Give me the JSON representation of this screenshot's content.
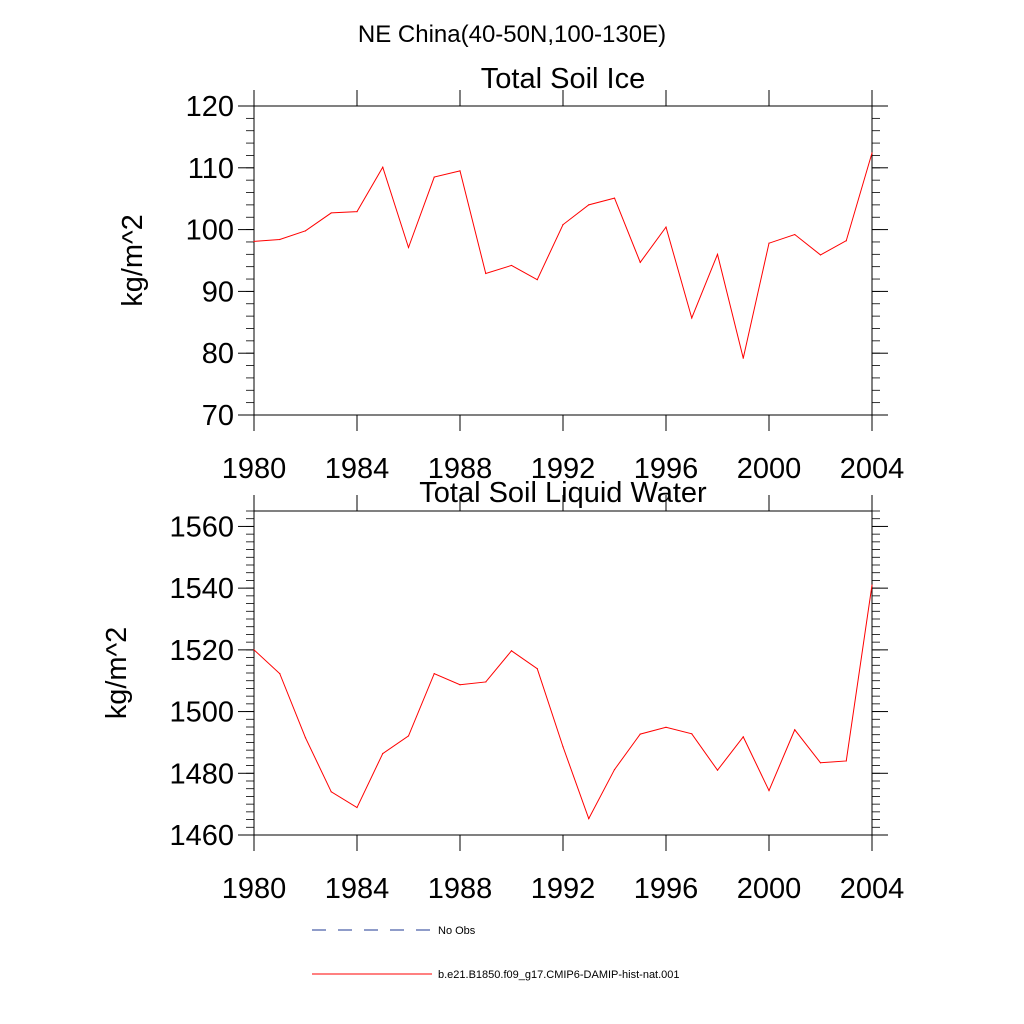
{
  "main_title": "NE China(40-50N,100-130E)",
  "colors": {
    "series": "#ff0000",
    "no_obs": "#1f3a93",
    "axis": "#000000"
  },
  "legend": {
    "no_obs_label": "No Obs",
    "model_label": "b.e21.B1850.f09_g17.CMIP6-DAMIP-hist-nat.001"
  },
  "chart_data": [
    {
      "type": "line",
      "title": "Total Soil Ice",
      "ylabel": "kg/m^2",
      "xlabel": "",
      "xlim": [
        1980,
        2004
      ],
      "ylim": [
        70,
        120
      ],
      "x_ticks": [
        "1980",
        "1984",
        "1988",
        "1992",
        "1996",
        "2000",
        "2004"
      ],
      "y_ticks": [
        "70",
        "80",
        "90",
        "100",
        "110",
        "120"
      ],
      "grid": false,
      "legend_position": "bottom",
      "x": [
        1980,
        1981,
        1982,
        1983,
        1984,
        1985,
        1986,
        1987,
        1988,
        1989,
        1990,
        1991,
        1992,
        1993,
        1994,
        1995,
        1996,
        1997,
        1998,
        1999,
        2000,
        2001,
        2002,
        2003,
        2004
      ],
      "series": [
        {
          "name": "b.e21.B1850.f09_g17.CMIP6-DAMIP-hist-nat.001",
          "color": "#ff0000",
          "values": [
            98.1,
            98.4,
            99.8,
            102.7,
            102.9,
            110.1,
            97.1,
            108.5,
            109.5,
            92.9,
            94.2,
            91.9,
            100.8,
            104.0,
            105.1,
            94.7,
            100.4,
            85.7,
            96.0,
            79.2,
            97.8,
            99.2,
            95.9,
            98.2,
            112.4
          ]
        }
      ]
    },
    {
      "type": "line",
      "title": "Total Soil Liquid Water",
      "ylabel": "kg/m^2",
      "xlabel": "",
      "xlim": [
        1980,
        2004
      ],
      "ylim": [
        1460,
        1565
      ],
      "x_ticks": [
        "1980",
        "1984",
        "1988",
        "1992",
        "1996",
        "2000",
        "2004"
      ],
      "y_ticks": [
        "1460",
        "1480",
        "1500",
        "1520",
        "1540",
        "1560"
      ],
      "grid": false,
      "legend_position": "bottom",
      "x": [
        1980,
        1981,
        1982,
        1983,
        1984,
        1985,
        1986,
        1987,
        1988,
        1989,
        1990,
        1991,
        1992,
        1993,
        1994,
        1995,
        1996,
        1997,
        1998,
        1999,
        2000,
        2001,
        2002,
        2003,
        2004
      ],
      "series": [
        {
          "name": "b.e21.B1850.f09_g17.CMIP6-DAMIP-hist-nat.001",
          "color": "#ff0000",
          "values": [
            1520.0,
            1512.3,
            1491.5,
            1474.0,
            1468.9,
            1486.4,
            1492.1,
            1512.3,
            1508.7,
            1509.6,
            1519.7,
            1513.9,
            1488.6,
            1465.3,
            1481.2,
            1492.7,
            1494.9,
            1492.8,
            1481.0,
            1491.8,
            1474.4,
            1494.1,
            1483.4,
            1484.0,
            1541.0
          ]
        }
      ]
    }
  ]
}
